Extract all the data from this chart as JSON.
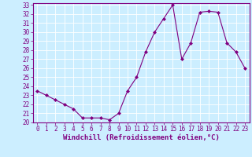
{
  "x": [
    0,
    1,
    2,
    3,
    4,
    5,
    6,
    7,
    8,
    9,
    10,
    11,
    12,
    13,
    14,
    15,
    16,
    17,
    18,
    19,
    20,
    21,
    22,
    23
  ],
  "y": [
    23.5,
    23.0,
    22.5,
    22.0,
    21.5,
    20.5,
    20.5,
    20.5,
    20.3,
    21.0,
    23.5,
    25.0,
    27.8,
    30.0,
    31.5,
    33.0,
    27.0,
    28.8,
    32.2,
    32.3,
    32.2,
    28.8,
    27.8,
    26.0
  ],
  "line_color": "#800080",
  "marker": "D",
  "marker_size": 2,
  "bg_color": "#cceeff",
  "grid_color": "#ffffff",
  "xlabel": "Windchill (Refroidissement éolien,°C)",
  "ylim": [
    20,
    33
  ],
  "xlim": [
    -0.5,
    23.5
  ],
  "yticks": [
    20,
    21,
    22,
    23,
    24,
    25,
    26,
    27,
    28,
    29,
    30,
    31,
    32,
    33
  ],
  "xticks": [
    0,
    1,
    2,
    3,
    4,
    5,
    6,
    7,
    8,
    9,
    10,
    11,
    12,
    13,
    14,
    15,
    16,
    17,
    18,
    19,
    20,
    21,
    22,
    23
  ],
  "tick_color": "#800080",
  "label_fontsize": 6.5,
  "tick_fontsize": 5.5,
  "spine_color": "#800080"
}
